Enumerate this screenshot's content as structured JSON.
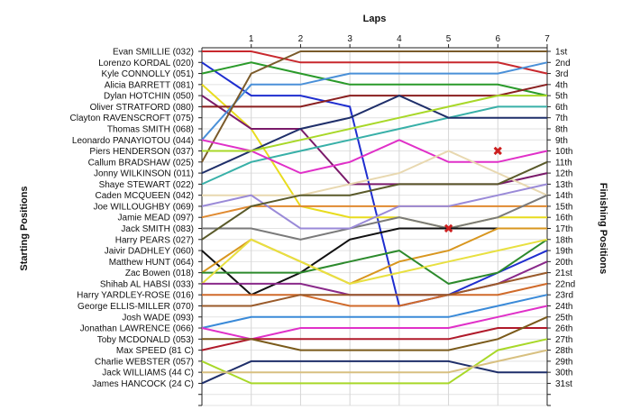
{
  "chart_data": {
    "type": "line",
    "title": "",
    "xlabel": "Laps",
    "ylabel_left": "Starting Positions",
    "ylabel_right": "Finishing Positions",
    "x": [
      0,
      1,
      2,
      3,
      4,
      5,
      6,
      7
    ],
    "x_ticks": [
      "1",
      "2",
      "3",
      "4",
      "5",
      "6",
      "7"
    ],
    "xlim": [
      0,
      7
    ],
    "ylim": [
      1,
      33
    ],
    "y_inverted": true,
    "grid": true,
    "start_labels": [
      "Evan SMILLIE (032)",
      "Lorenzo KORDAL (020)",
      "Kyle CONNOLLY (051)",
      "Alicia BARRETT (081)",
      "Dylan HOTCHIN (050)",
      "Oliver STRATFORD (080)",
      "Clayton RAVENSCROFT (075)",
      "Thomas SMITH (068)",
      "Leonardo PANAYIOTOU (044)",
      "Piers HENDERSON (037)",
      "Callum BRADSHAW (025)",
      "Jonny WILKINSON (011)",
      "Shaye STEWART (022)",
      "Caden MCQUEEN (042)",
      "Joe WILLOUGHBY (069)",
      "Jamie MEAD (097)",
      "Jack SMITH (083)",
      "Harry PEARS (027)",
      "Jaivir DADHLEY (060)",
      "Matthew HUNT (064)",
      "Zac Bowen (018)",
      "Shihab AL HABSI (033)",
      "Harry YARDLEY-ROSE (016)",
      "George ELLIS-MILLER (070)",
      "Josh WADE (093)",
      "Jonathan LAWRENCE (066)",
      "Toby MCDONALD (053)",
      "Max SPEED (81 C)",
      "Charlie WEBSTER (057)",
      "Jack WILLIAMS (44 C)",
      "James HANCOCK (24 C)"
    ],
    "finish_labels": [
      "1st",
      "2nd",
      "3rd",
      "4th",
      "5th",
      "6th",
      "7th",
      "8th",
      "9th",
      "10th",
      "11th",
      "12th",
      "13th",
      "14th",
      "15th",
      "16th",
      "17th",
      "18th",
      "19th",
      "20th",
      "21st",
      "22nd",
      "23rd",
      "24th",
      "25th",
      "26th",
      "27th",
      "28th",
      "29th",
      "30th",
      "31st"
    ],
    "series": [
      {
        "color": "#c8282d",
        "values": [
          1,
          1,
          2,
          2,
          2,
          2,
          2,
          3
        ]
      },
      {
        "color": "#1f2ecf",
        "values": [
          2,
          5,
          5,
          6,
          24,
          23,
          21,
          19
        ]
      },
      {
        "color": "#2a9a2a",
        "values": [
          3,
          2,
          3,
          4,
          4,
          4,
          4,
          5
        ]
      },
      {
        "color": "#e8dc1e",
        "values": [
          4,
          8,
          15,
          16,
          16,
          17,
          16,
          16
        ]
      },
      {
        "color": "#7a1a6a",
        "values": [
          5,
          8,
          8,
          13,
          13,
          13,
          13,
          12
        ]
      },
      {
        "color": "#8a1f1f",
        "values": [
          6,
          6,
          6,
          5,
          5,
          5,
          5,
          4
        ]
      },
      {
        "color": "#4a90d8",
        "values": [
          9,
          4,
          4,
          3,
          3,
          3,
          3,
          2
        ]
      },
      {
        "color": "#7a5a2a",
        "values": [
          11,
          3,
          1,
          1,
          1,
          1,
          1,
          1
        ]
      },
      {
        "color": "#38b0a8",
        "values": [
          13,
          11,
          10,
          9,
          8,
          7,
          6,
          6
        ]
      },
      {
        "color": "#e030c8",
        "values": [
          9,
          10,
          12,
          11,
          9,
          11,
          11,
          10
        ]
      },
      {
        "color": "#1f2f6a",
        "values": [
          12,
          10,
          8,
          7,
          5,
          7,
          7,
          7
        ]
      },
      {
        "color": "#a8d828",
        "values": [
          10,
          10,
          9,
          8,
          7,
          6,
          5,
          5
        ]
      },
      {
        "color": "#e8d8b0",
        "values": [
          14,
          14,
          14,
          13,
          12,
          10,
          12,
          14
        ]
      },
      {
        "color": "#e08a30",
        "values": [
          16,
          15,
          15,
          15,
          15,
          15,
          15,
          15
        ]
      },
      {
        "color": "#7a7a7a",
        "values": [
          17,
          17,
          18,
          17,
          16,
          17,
          16,
          14
        ]
      },
      {
        "color": "#9a8ad8",
        "values": [
          15,
          14,
          17,
          17,
          15,
          15,
          14,
          13
        ]
      },
      {
        "color": "#5a5a2a",
        "values": [
          18,
          15,
          14,
          14,
          13,
          13,
          13,
          11
        ]
      },
      {
        "color": "#111111",
        "values": [
          19,
          23,
          21,
          18,
          17,
          17,
          17,
          17
        ]
      },
      {
        "color": "#d8961e",
        "values": [
          21,
          18,
          20,
          22,
          20,
          19,
          17,
          17
        ]
      },
      {
        "color": "#2c8a2c",
        "values": [
          21,
          21,
          21,
          20,
          19,
          22,
          21,
          18
        ]
      },
      {
        "color": "#e8e040",
        "values": [
          22,
          18,
          20,
          22,
          21,
          20,
          19,
          18
        ]
      },
      {
        "color": "#8a2a8a",
        "values": [
          22,
          22,
          22,
          23,
          23,
          23,
          22,
          20
        ]
      },
      {
        "color": "#d06a2a",
        "values": [
          23,
          23,
          23,
          24,
          24,
          23,
          23,
          22
        ]
      },
      {
        "color": "#9a5a2a",
        "values": [
          24,
          24,
          23,
          23,
          23,
          23,
          22,
          21
        ]
      },
      {
        "color": "#3a8ad8",
        "values": [
          26,
          25,
          25,
          25,
          25,
          25,
          24,
          23
        ]
      },
      {
        "color": "#e030c8",
        "values": [
          26,
          27,
          26,
          26,
          26,
          26,
          25,
          24
        ]
      },
      {
        "color": "#b01a2a",
        "values": [
          28,
          27,
          27,
          27,
          27,
          27,
          26,
          26
        ]
      },
      {
        "color": "#7a5a1a",
        "values": [
          27,
          27,
          28,
          28,
          28,
          28,
          27,
          25
        ]
      },
      {
        "color": "#a8d828",
        "values": [
          29,
          31,
          31,
          31,
          31,
          31,
          28,
          27
        ]
      },
      {
        "color": "#1f2f6a",
        "values": [
          31,
          29,
          29,
          29,
          29,
          29,
          30,
          30
        ]
      },
      {
        "color": "#d8c080",
        "values": [
          30,
          30,
          30,
          30,
          30,
          30,
          29,
          28
        ]
      }
    ],
    "markers": [
      {
        "symbol": "✖",
        "color": "#cc1f1f",
        "x": 6,
        "y": 10
      },
      {
        "symbol": "✖",
        "color": "#cc1f1f",
        "x": 5,
        "y": 17
      }
    ]
  }
}
